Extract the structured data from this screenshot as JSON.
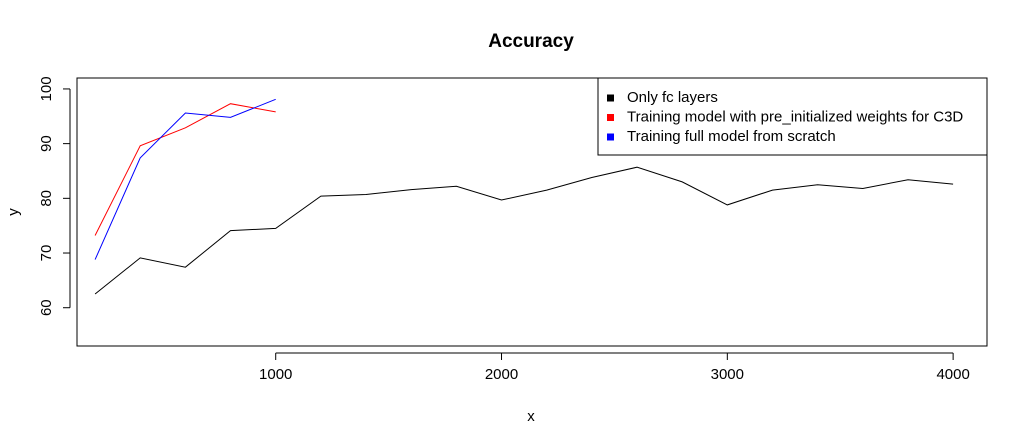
{
  "chart_data": {
    "type": "line",
    "title": "Accuracy",
    "xlabel": "x",
    "ylabel": "y",
    "xlim": [
      120,
      4150
    ],
    "ylim": [
      53,
      102
    ],
    "xticks": [
      1000,
      2000,
      3000,
      4000
    ],
    "yticks": [
      60,
      70,
      80,
      90,
      100
    ],
    "grid": false,
    "legend_position": "top-right",
    "series": [
      {
        "name": "Only fc layers",
        "color": "#000000",
        "x": [
          200,
          400,
          600,
          800,
          1000,
          1200,
          1400,
          1600,
          1800,
          2000,
          2200,
          2400,
          2600,
          2800,
          3000,
          3200,
          3400,
          3600,
          3800,
          4000
        ],
        "y": [
          62.5,
          69.1,
          67.4,
          74.1,
          74.5,
          80.4,
          80.7,
          81.6,
          82.2,
          79.7,
          81.5,
          83.8,
          85.7,
          83.0,
          78.8,
          81.5,
          82.5,
          81.8,
          83.4,
          82.6
        ]
      },
      {
        "name": "Training model with pre_initialized weights for C3D",
        "color": "#ff0000",
        "x": [
          200,
          400,
          600,
          800,
          1000
        ],
        "y": [
          73.2,
          89.6,
          92.9,
          97.3,
          95.8
        ]
      },
      {
        "name": "Training full model from scratch",
        "color": "#0000ff",
        "x": [
          200,
          400,
          600,
          800,
          1000
        ],
        "y": [
          68.8,
          87.4,
          95.6,
          94.8,
          98.1
        ]
      }
    ]
  }
}
